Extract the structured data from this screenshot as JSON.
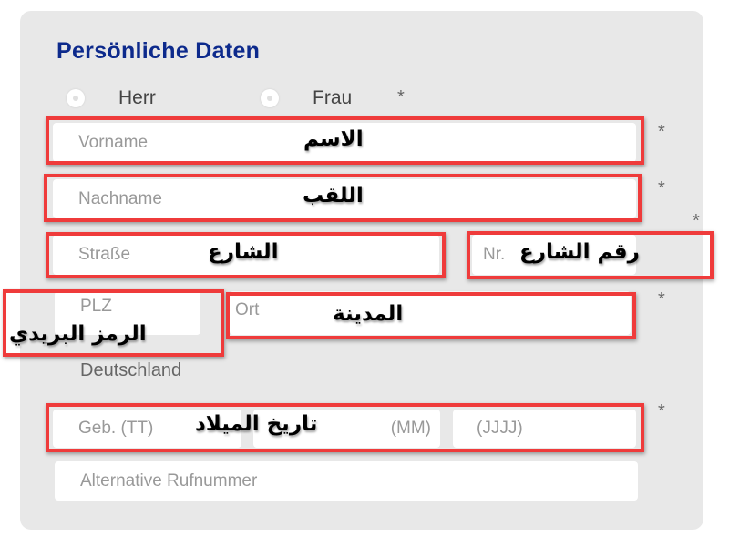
{
  "section_title": "Persönliche Daten",
  "salutation": {
    "options": [
      "Herr",
      "Frau"
    ],
    "required_mark": "*"
  },
  "fields": {
    "vorname": {
      "placeholder": "Vorname",
      "annotation": "الاسم"
    },
    "nachname": {
      "placeholder": "Nachname",
      "annotation": "اللقب"
    },
    "strasse": {
      "placeholder": "Straße",
      "annotation": "الشارع"
    },
    "nr": {
      "placeholder": "Nr.",
      "annotation": "رقم الشارع"
    },
    "plz": {
      "placeholder": "PLZ",
      "annotation": "الرمز البريدي"
    },
    "ort": {
      "placeholder": "Ort",
      "annotation": "المدينة"
    },
    "country": "Deutschland",
    "geb_tt": {
      "placeholder": "Geb. (TT)"
    },
    "geb_mm": {
      "placeholder": "(MM)"
    },
    "geb_jjjj": {
      "placeholder": "(JJJJ)"
    },
    "geb_annotation": "تاريخ الميلاد",
    "alt_phone": {
      "placeholder": "Alternative Rufnummer"
    }
  },
  "required_mark": "*",
  "colors": {
    "title": "#0d2a8c",
    "highlight": "#ef3b3b",
    "panel": "#e8e8e8"
  }
}
